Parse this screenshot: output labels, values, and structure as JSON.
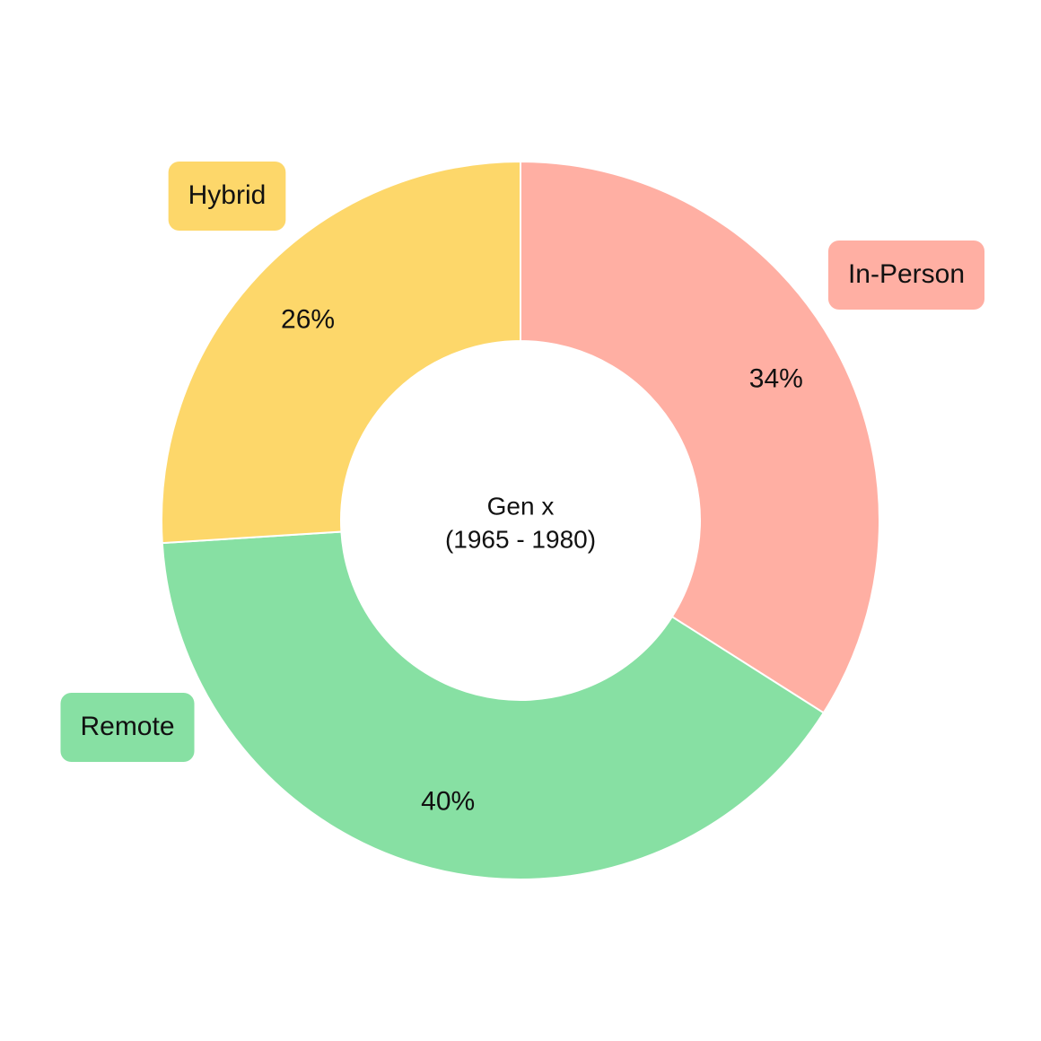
{
  "chart_data": {
    "type": "donut",
    "categories": [
      "In-Person",
      "Remote",
      "Hybrid"
    ],
    "values": [
      34,
      40,
      26
    ],
    "value_labels": [
      "34%",
      "40%",
      "26%"
    ],
    "colors": [
      "#ffafa3",
      "#87e0a3",
      "#fdd76a"
    ],
    "center_text": [
      "Gen x",
      "(1965 - 1980)"
    ]
  }
}
